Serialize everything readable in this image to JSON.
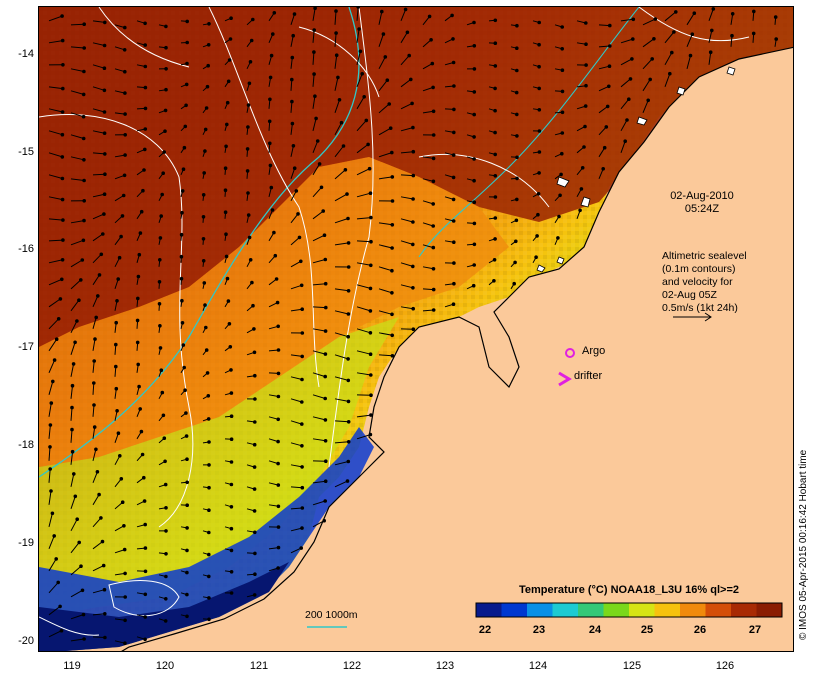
{
  "map": {
    "y_ticks": [
      "-14",
      "-15",
      "-16",
      "-17",
      "-18",
      "-19",
      "-20"
    ],
    "x_ticks": [
      "119",
      "120",
      "121",
      "122",
      "123",
      "124",
      "125",
      "126"
    ],
    "datetime_line1": "02-Aug-2010",
    "datetime_line2": "05:24Z",
    "altimetry_note": [
      "Altimetric sealevel",
      "(0.1m contours)",
      "and velocity for",
      "02-Aug 05Z",
      "0.5m/s (1kt 24h)"
    ],
    "argo_label": "Argo",
    "drifter_label": "drifter",
    "bathy_label": "200  1000m",
    "credit": "© IMOS 05-Apr-2015 00:16:42 Hobart time"
  },
  "colorbar": {
    "title": "Temperature (°C) NOAA18_L3U 16% ql>=2",
    "ticks": [
      "22",
      "23",
      "24",
      "25",
      "26",
      "27"
    ],
    "colors": [
      "#081a8c",
      "#0038d0",
      "#0a90e6",
      "#1ecad2",
      "#34c878",
      "#7ad81c",
      "#d6e414",
      "#f6c20e",
      "#f08a0c",
      "#d44e08",
      "#a82a04",
      "#8a1c02"
    ]
  },
  "colors": {
    "land": "#fbc99a",
    "argo": "#e020e0",
    "drifter": "#e020e0",
    "isobath": "#30c8c8"
  }
}
